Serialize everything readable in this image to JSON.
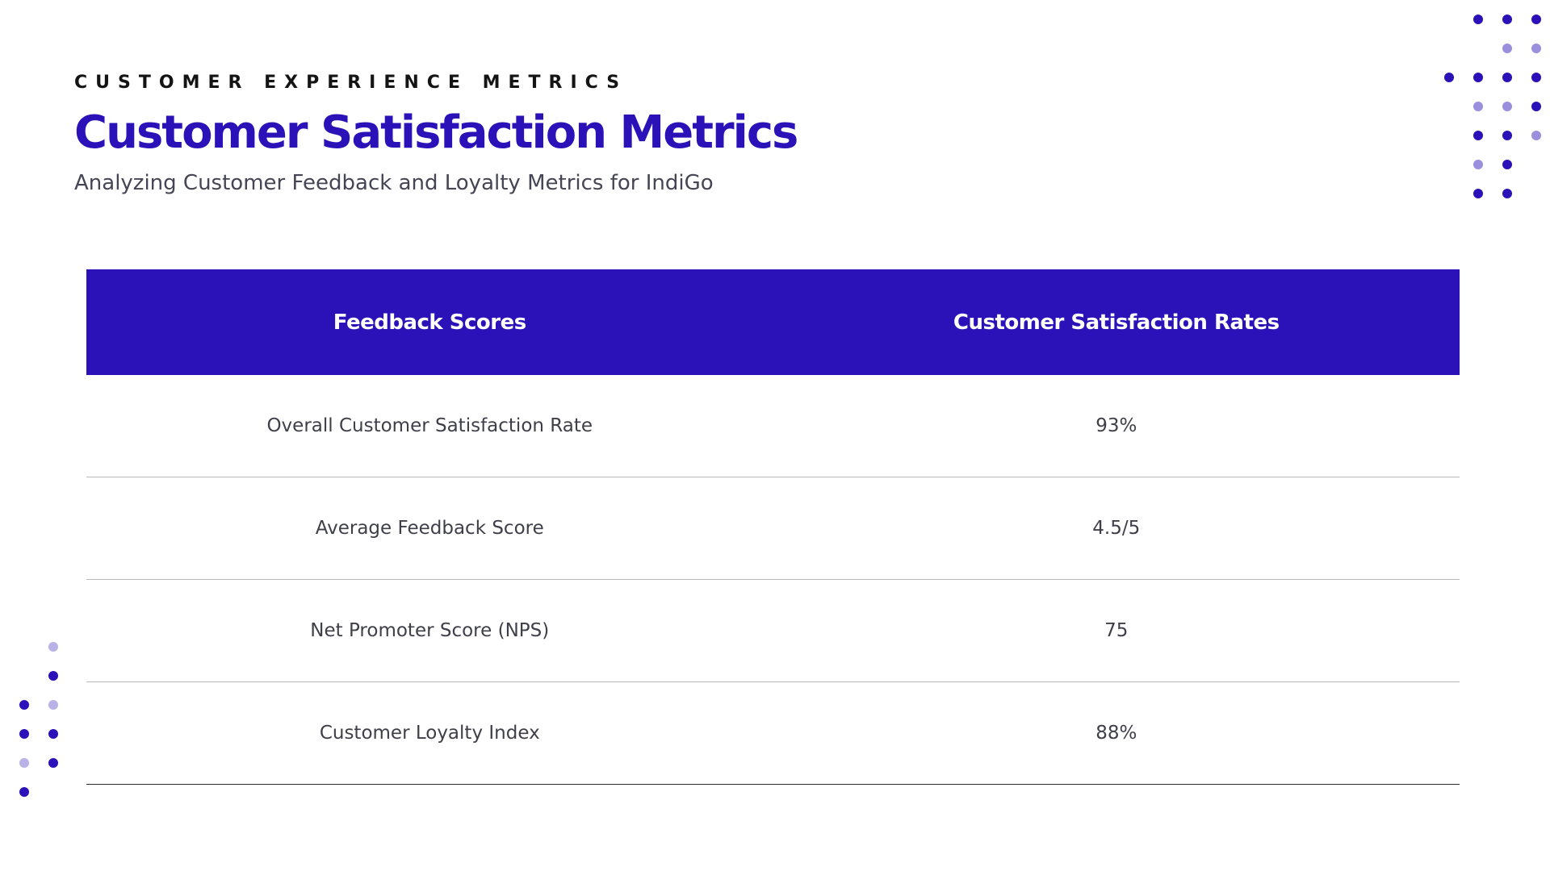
{
  "header": {
    "eyebrow": "CUSTOMER EXPERIENCE METRICS",
    "title": "Customer Satisfaction Metrics",
    "subtitle": "Analyzing Customer Feedback and Loyalty Metrics for IndiGo"
  },
  "table": {
    "columns": [
      "Feedback Scores",
      "Customer Satisfaction Rates"
    ],
    "rows": [
      [
        "Overall Customer Satisfaction Rate",
        "93%"
      ],
      [
        "Average Feedback Score",
        "4.5/5"
      ],
      [
        "Net Promoter Score (NPS)",
        "75"
      ],
      [
        "Customer Loyalty Index",
        "88%"
      ]
    ]
  },
  "colors": {
    "accent": "#2a12b8",
    "dot_light": "#9a8fdc",
    "dot_pale": "#b9b2e6"
  }
}
